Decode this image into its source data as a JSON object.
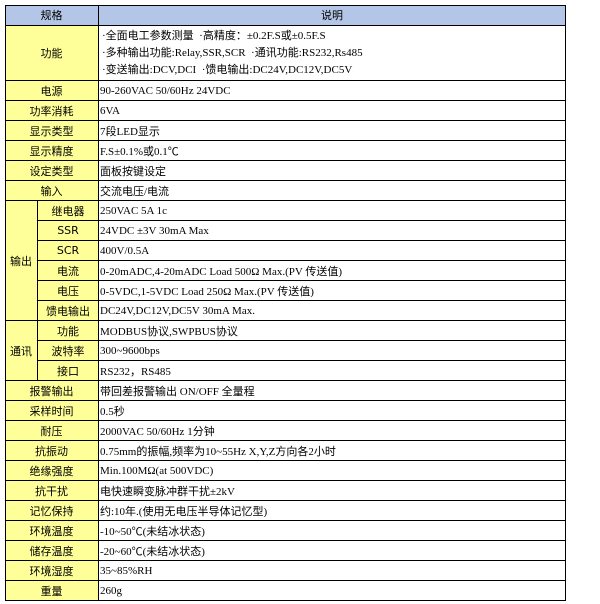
{
  "table": {
    "header": [
      "规格",
      "说明"
    ],
    "rows": [
      {
        "label": "功能",
        "lines": [
          "·全面电工参数测量  ·高精度：±0.2F.S或±0.5F.S",
          "·多种输出功能:Relay,SSR,SCR  ·通讯功能:RS232,Rs485",
          "·变送输出:DCV,DCI  ·馈电输出:DC24V,DC12V,DC5V"
        ]
      },
      {
        "label": "电源",
        "value": "90-260VAC 50/60Hz 24VDC"
      },
      {
        "label": "功率消耗",
        "value": "6VA"
      },
      {
        "label": "显示类型",
        "value": "7段LED显示"
      },
      {
        "label": "显示精度",
        "value": "F.S±0.1%或0.1℃"
      },
      {
        "label": "设定类型",
        "value": "面板按键设定"
      },
      {
        "label": "输入",
        "value": "交流电压/电流"
      },
      {
        "group": "输出",
        "items": [
          {
            "label": "继电器",
            "value": "250VAC 5A 1c"
          },
          {
            "label": "SSR",
            "value": "24VDC ±3V 30mA Max"
          },
          {
            "label": "SCR",
            "value": "400V/0.5A"
          },
          {
            "label": "电流",
            "value": "0-20mADC,4-20mADC Load 500Ω Max.(PV 传送值)"
          },
          {
            "label": "电压",
            "value": "0-5VDC,1-5VDC Load 250Ω Max.(PV 传送值)"
          },
          {
            "label": "馈电输出",
            "value": "DC24V,DC12V,DC5V 30mA Max."
          }
        ]
      },
      {
        "group": "通讯",
        "items": [
          {
            "label": "功能",
            "value": "MODBUS协议,SWPBUS协议"
          },
          {
            "label": "波特率",
            "value": "300~9600bps"
          },
          {
            "label": "接口",
            "value": "RS232，RS485"
          }
        ]
      },
      {
        "label": "报警输出",
        "value": "带回差报警输出 ON/OFF 全量程"
      },
      {
        "label": "采样时间",
        "value": "0.5秒"
      },
      {
        "label": "耐压",
        "value": "2000VAC 50/60Hz 1分钟"
      },
      {
        "label": "抗振动",
        "value": "0.75mm的振幅,频率为10~55Hz X,Y,Z方向各2小时"
      },
      {
        "label": "绝缘强度",
        "value": "Min.100MΩ(at 500VDC)"
      },
      {
        "label": "抗干扰",
        "value": "电快速瞬变脉冲群干扰±2kV"
      },
      {
        "label": "记忆保持",
        "value": "约:10年.(使用无电压半导体记忆型)"
      },
      {
        "label": "环境温度",
        "value": "-10~50℃(未结冰状态)"
      },
      {
        "label": "储存温度",
        "value": "-20~60℃(未结冰状态)"
      },
      {
        "label": "环境湿度",
        "value": "35~85%RH"
      },
      {
        "label": "重量",
        "value": "260g"
      }
    ]
  }
}
